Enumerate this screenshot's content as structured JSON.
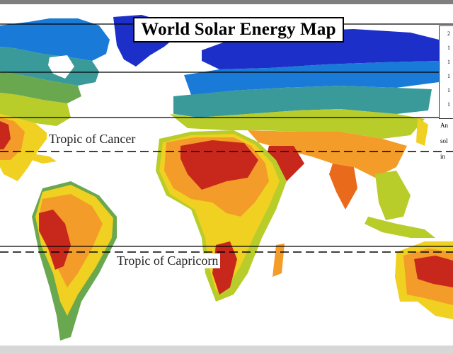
{
  "title": "World Solar Energy Map",
  "tropics": {
    "cancer": "Tropic of Cancer",
    "capricorn": "Tropic of Capricorn"
  },
  "legend": {
    "values": [
      "2",
      "1",
      "1",
      "1",
      "1",
      "1"
    ],
    "note_lines": [
      "An",
      "sol",
      "in"
    ]
  },
  "colors": {
    "ocean": "#ffffff",
    "zone_blue_dark": "#1c2fc8",
    "zone_blue": "#1a7ad8",
    "zone_teal": "#3a9a9a",
    "zone_green": "#6aa84f",
    "zone_yellowgreen": "#b8cc2a",
    "zone_yellow": "#f0d020",
    "zone_orange": "#f39c2a",
    "zone_deeporange": "#ea6a1c",
    "zone_red": "#c8281c"
  }
}
